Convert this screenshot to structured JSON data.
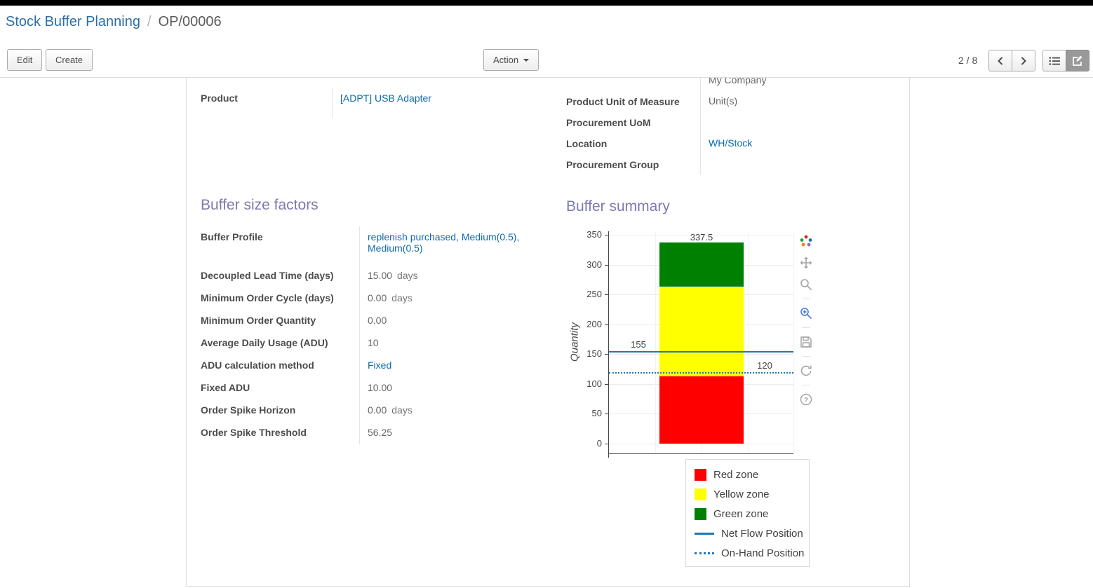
{
  "breadcrumb": {
    "parent": "Stock Buffer Planning",
    "separator": "/",
    "current": "OP/00006"
  },
  "toolbar": {
    "edit_label": "Edit",
    "create_label": "Create",
    "action_label": "Action",
    "pager_value": "2 / 8"
  },
  "form": {
    "main_fields_left": [
      {
        "label": "Product",
        "value": "[ADPT] USB Adapter"
      }
    ],
    "main_fields_right": [
      {
        "label": "",
        "value": "My Company"
      },
      {
        "label": "Product Unit of Measure",
        "value": "Unit(s)"
      },
      {
        "label": "Procurement UoM",
        "value": ""
      },
      {
        "label": "Location",
        "value": "WH/Stock"
      },
      {
        "label": "Procurement Group",
        "value": ""
      }
    ],
    "sections": {
      "factors_title": "Buffer size factors",
      "summary_title": "Buffer summary"
    },
    "factors": [
      {
        "label": "Buffer Profile",
        "value": "replenish purchased, Medium(0.5), Medium(0.5)"
      },
      {
        "label": "Decoupled Lead Time (days)",
        "value": "15.00",
        "suffix": "days"
      },
      {
        "label": "Minimum Order Cycle (days)",
        "value": "0.00",
        "suffix": "days"
      },
      {
        "label": "Minimum Order Quantity",
        "value": "0.00"
      },
      {
        "label": "Average Daily Usage (ADU)",
        "value": "10"
      },
      {
        "label": "ADU calculation method",
        "value": "Fixed"
      },
      {
        "label": "Fixed ADU",
        "value": "10.00"
      },
      {
        "label": "Order Spike Horizon",
        "value": "0.00",
        "suffix": "days"
      },
      {
        "label": "Order Spike Threshold",
        "value": "56.25"
      }
    ]
  },
  "chart_data": {
    "type": "bar",
    "stacked": true,
    "title": "",
    "xlabel": "",
    "ylabel": "Quantity",
    "ylim": [
      0,
      350
    ],
    "yticks": [
      0,
      50,
      100,
      150,
      200,
      250,
      300,
      350
    ],
    "grid": true,
    "series": [
      {
        "name": "Red zone",
        "color": "#ff0000",
        "values": [
          112.5
        ]
      },
      {
        "name": "Yellow zone",
        "color": "#ffff00",
        "values": [
          150
        ]
      },
      {
        "name": "Green zone",
        "color": "#008000",
        "values": [
          75
        ]
      }
    ],
    "boundary_labels": [
      "112.5",
      "262.5",
      "337.5"
    ],
    "reference_lines": [
      {
        "name": "Net Flow Position",
        "value": 155,
        "label": "155",
        "style": "solid",
        "color": "#1f77b4"
      },
      {
        "name": "On-Hand Position",
        "value": 120,
        "label": "120",
        "style": "dotted",
        "color": "#1f77b4"
      }
    ],
    "legend_position": "below-right",
    "legend": [
      {
        "label": "Red zone",
        "color": "#ff0000"
      },
      {
        "label": "Yellow zone",
        "color": "#ffff00"
      },
      {
        "label": "Green zone",
        "color": "#008000"
      },
      {
        "label": "Net Flow Position",
        "color": "#1f77b4"
      },
      {
        "label": "On-Hand Position",
        "color": "#1f77b4"
      }
    ],
    "modebar_icons": [
      "plotly-logo",
      "pan",
      "zoom",
      "zoom-in",
      "save",
      "autoscale",
      "help"
    ]
  },
  "colors": {
    "section_header": "#7c7bad",
    "link": "#0d6aad",
    "breadcrumb_link": "#2d6ea8",
    "net_flow_blue": "#1f77b4"
  }
}
